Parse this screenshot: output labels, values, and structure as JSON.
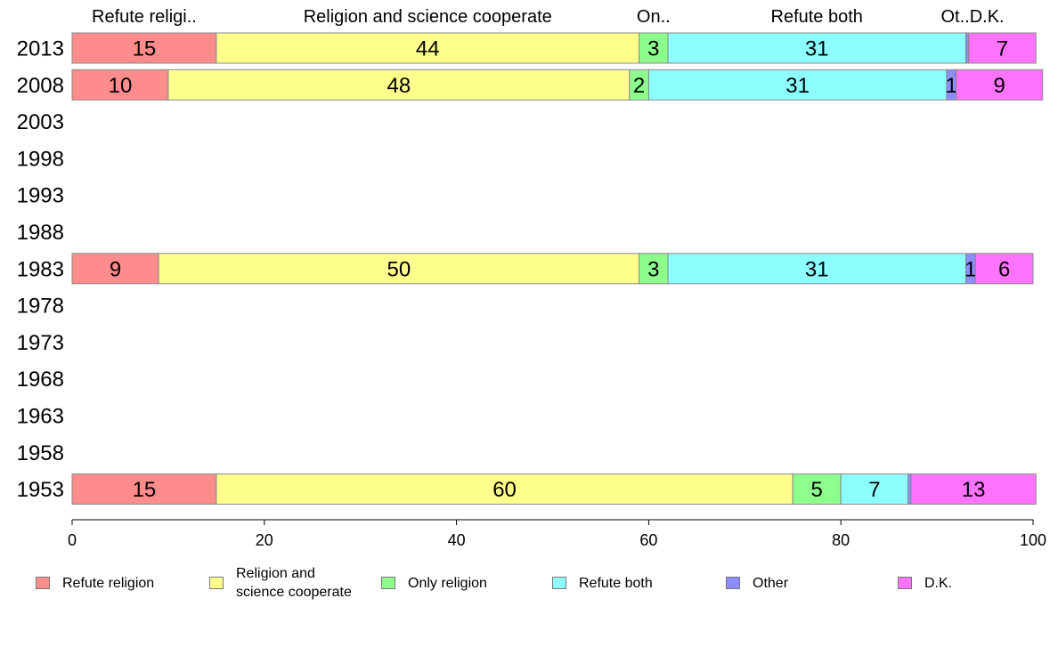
{
  "chart_data": {
    "type": "bar",
    "orientation": "horizontal",
    "stacked": true,
    "categories": [
      "2013",
      "2008",
      "2003",
      "1998",
      "1993",
      "1988",
      "1983",
      "1978",
      "1973",
      "1968",
      "1963",
      "1958",
      "1953"
    ],
    "series": [
      {
        "name": "Refute religion",
        "short_label": "Refute religi..",
        "color": "#ff8c8c",
        "values": [
          15,
          10,
          null,
          null,
          null,
          null,
          9,
          null,
          null,
          null,
          null,
          null,
          15
        ]
      },
      {
        "name": "Religion and science cooperate",
        "short_label": "Religion and science cooperate",
        "legend_text": "Religion and\nscience cooperate",
        "color": "#ffff8c",
        "values": [
          44,
          48,
          null,
          null,
          null,
          null,
          50,
          null,
          null,
          null,
          null,
          null,
          60
        ]
      },
      {
        "name": "Only religion",
        "short_label": "On..",
        "color": "#8cff8c",
        "values": [
          3,
          2,
          null,
          null,
          null,
          null,
          3,
          null,
          null,
          null,
          null,
          null,
          5
        ]
      },
      {
        "name": "Refute both",
        "short_label": "Refute both",
        "color": "#8cffff",
        "values": [
          31,
          31,
          null,
          null,
          null,
          null,
          31,
          null,
          null,
          null,
          null,
          null,
          7
        ]
      },
      {
        "name": "Other",
        "short_label": "Ot..",
        "color": "#8c8cff",
        "values": [
          0.3,
          1,
          null,
          null,
          null,
          null,
          1,
          null,
          null,
          null,
          null,
          null,
          0.3
        ]
      },
      {
        "name": "D.K.",
        "short_label": "D.K.",
        "color": "#ff73ff",
        "values": [
          7,
          9,
          null,
          null,
          null,
          null,
          6,
          null,
          null,
          null,
          null,
          null,
          13
        ]
      }
    ],
    "value_labels": [
      [
        "15",
        "44",
        "3",
        "31",
        "",
        "7"
      ],
      [
        "10",
        "48",
        "2",
        "31",
        "1",
        "9"
      ],
      null,
      null,
      null,
      null,
      [
        "9",
        "50",
        "3",
        "31",
        "1",
        "6"
      ],
      null,
      null,
      null,
      null,
      null,
      [
        "15",
        "60",
        "5",
        "7",
        "",
        "13"
      ]
    ],
    "xlim": [
      0,
      100
    ],
    "xticks": [
      "0",
      "20",
      "40",
      "60",
      "80",
      "100"
    ],
    "top_labels_row": "2013",
    "legend": {
      "position": "bottom"
    },
    "grid": false
  }
}
